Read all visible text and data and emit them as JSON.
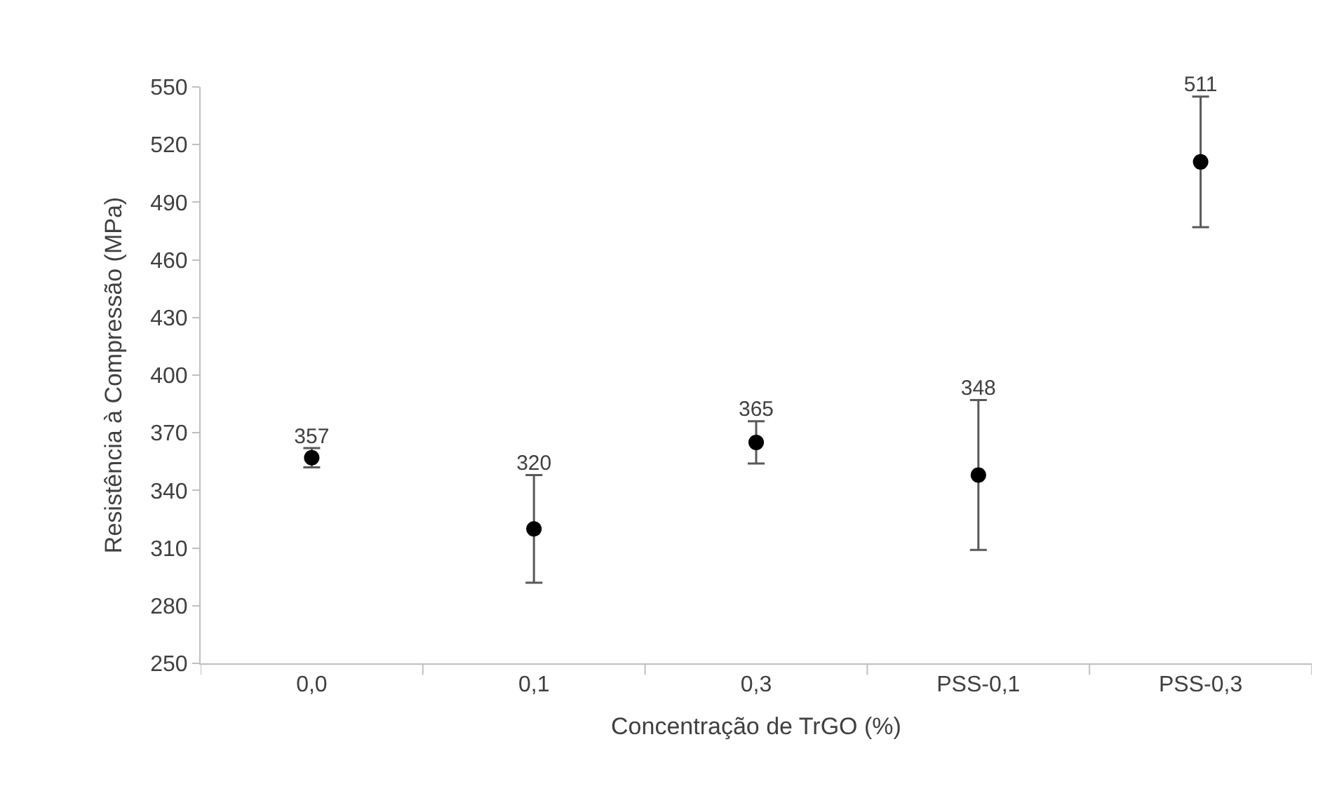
{
  "chart_data": {
    "type": "scatter",
    "xlabel": "Concentração de TrGO (%)",
    "ylabel": "Resistência à Compressão (MPa)",
    "categories": [
      "0,0",
      "0,1",
      "0,3",
      "PSS-0,1",
      "PSS-0,3"
    ],
    "series": [
      {
        "color": "#000000",
        "values": [
          357,
          320,
          365,
          348,
          511
        ],
        "errors": [
          5,
          28,
          11,
          39,
          34
        ]
      }
    ],
    "data_labels": true,
    "marker": "circle",
    "ylim": [
      250,
      550
    ],
    "yticks": [
      250,
      280,
      310,
      340,
      370,
      400,
      430,
      460,
      490,
      520,
      550
    ],
    "grid": false,
    "legend": false
  }
}
